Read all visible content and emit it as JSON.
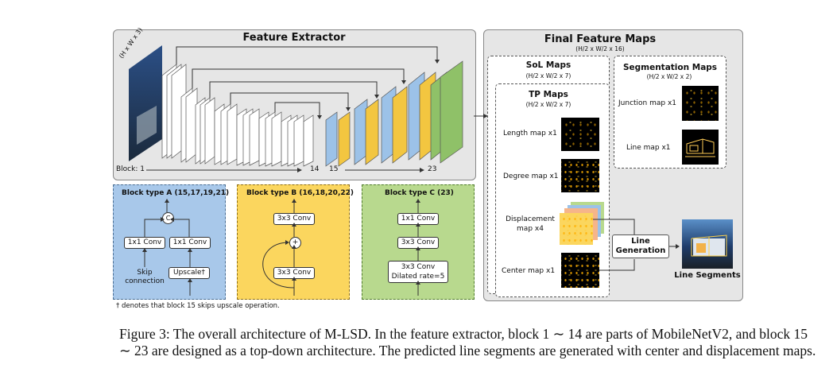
{
  "feature_extractor": {
    "title": "Feature Extractor",
    "input_label": "(H x W x 3)",
    "block_prefix": "Block: 1",
    "block_14": "14",
    "block_15": "15",
    "block_23": "23"
  },
  "block_a": {
    "title": "Block type A (15,17,19,21)",
    "concat": "C",
    "conv_left": "1x1 Conv",
    "conv_right": "1x1 Conv",
    "skip": "Skip\nconnection",
    "upscale": "Upscale†"
  },
  "block_b": {
    "title": "Block type B (16,18,20,22)",
    "conv_top": "3x3 Conv",
    "add": "+",
    "conv_bottom": "3x3 Conv"
  },
  "block_c": {
    "title": "Block type C (23)",
    "conv1": "1x1 Conv",
    "conv2": "3x3 Conv",
    "conv3_line1": "3x3 Conv",
    "conv3_line2": "Dilated rate=5"
  },
  "footnote": "† denotes that block 15 skips upscale operation.",
  "final_maps": {
    "title": "Final Feature Maps",
    "dims": "(H/2 x W/2 x 16)",
    "sol_title": "SoL Maps",
    "sol_dims": "(H/2 x W/2 x 7)",
    "tp_title": "TP Maps",
    "tp_dims": "(H/2 x W/2 x 7)",
    "length": "Length map x1",
    "degree": "Degree map x1",
    "displacement_line1": "Displacement",
    "displacement_line2": "map x4",
    "center": "Center map x1",
    "seg_title": "Segmentation Maps",
    "seg_dims": "(H/2 x W/2 x 2)",
    "junction": "Junction map x1",
    "line": "Line map x1"
  },
  "line_generation": {
    "line1": "Line",
    "line2": "Generation"
  },
  "line_segments": "Line Segments",
  "caption": "Figure 3: The overall architecture of M-LSD. In the feature extractor, block 1 ∼ 14 are parts of MobileNetV2, and block 15 ∼ 23 are designed as a top-down architecture. The predicted line segments are generated with center and displacement maps.",
  "colors": {
    "panel_gray": "#e6e6e6",
    "block_a_bg": "#a8c8ea",
    "block_b_bg": "#fbd65e",
    "block_c_bg": "#b8d98e",
    "blue_block": "#9cc2e8",
    "yellow_block": "#f3c640",
    "green_block": "#8fc168"
  }
}
